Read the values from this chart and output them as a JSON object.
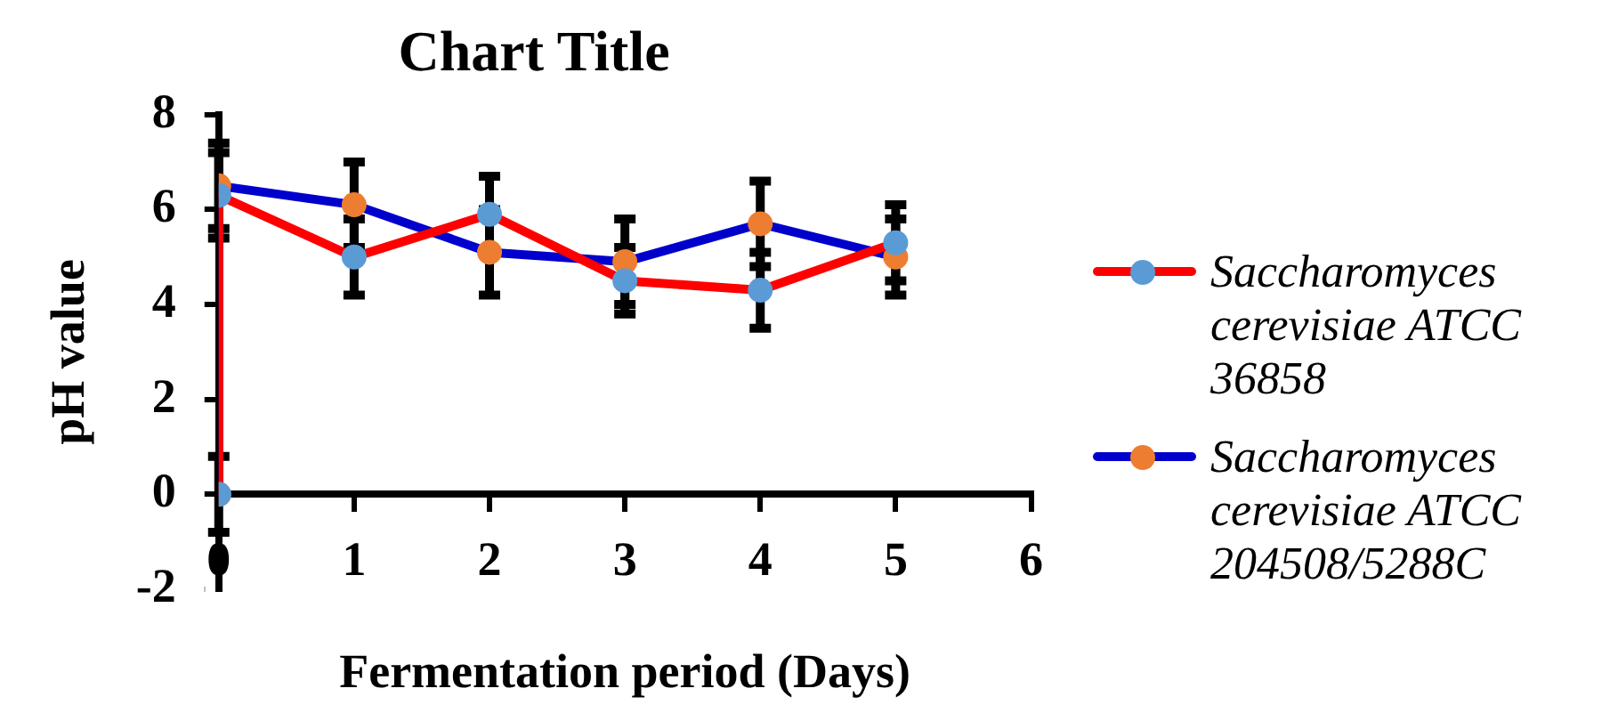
{
  "chart_data": {
    "type": "line",
    "title": "Chart Title",
    "xlabel": "Fermentation period (Days)",
    "ylabel": "pH value",
    "xlim": [
      0,
      6
    ],
    "xticks": [
      0,
      1,
      2,
      3,
      4,
      5,
      6
    ],
    "ylim": [
      -2,
      8
    ],
    "yticks": [
      -2,
      0,
      2,
      4,
      6,
      8
    ],
    "grid": false,
    "legend": "right",
    "marker": "circle",
    "line_style": "solid",
    "series": [
      {
        "name": "Saccharomyces cerevisiae ATCC 36858",
        "color": "#ff0000",
        "colors": [
          "#5b9bd5",
          "#5b9bd5",
          "#5b9bd5",
          "#5b9bd5",
          "#5b9bd5",
          "#5b9bd5",
          "#5b9bd5"
        ],
        "x": [
          0,
          0,
          1,
          2,
          3,
          4,
          5
        ],
        "values": [
          0,
          6.3,
          5.0,
          5.9,
          4.5,
          4.3,
          5.3
        ],
        "errors": [
          0.8,
          0.9,
          0.8,
          0.8,
          0.7,
          0.8,
          0.8
        ]
      },
      {
        "name": "Saccharomyces cerevisiae ATCC 204508/5288C",
        "color": "#0000cc",
        "colors": [
          "#ed7d31",
          "#ed7d31",
          "#ed7d31",
          "#ed7d31",
          "#ed7d31",
          "#ed7d31",
          "#ed7d31"
        ],
        "x": [
          0,
          0,
          1,
          2,
          3,
          4,
          5
        ],
        "values": [
          0,
          6.5,
          6.1,
          5.1,
          4.9,
          5.7,
          5.0
        ],
        "errors": [
          null,
          0.9,
          0.9,
          0.9,
          0.9,
          0.9,
          0.8
        ]
      }
    ]
  }
}
